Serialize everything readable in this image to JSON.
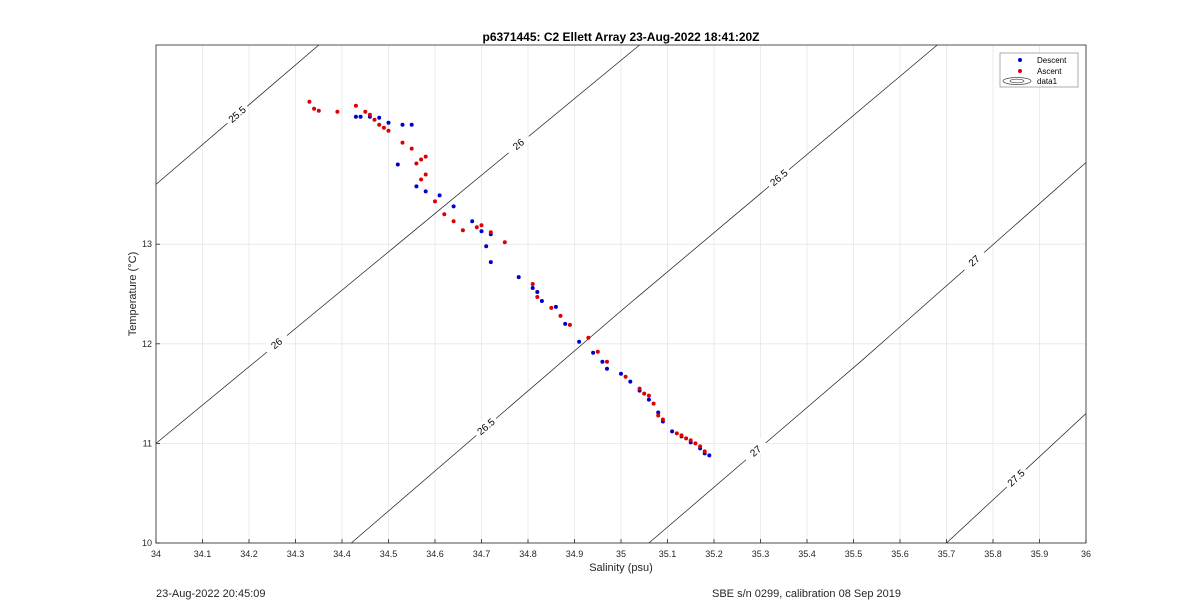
{
  "chart_data": {
    "type": "scatter",
    "title": "p6371445: C2 Ellett Array 23-Aug-2022 18:41:20Z",
    "xlabel": "Salinity (psu)",
    "ylabel": "Temperature (°C)",
    "xlim": [
      34,
      36
    ],
    "ylim": [
      10,
      15
    ],
    "xticks": [
      "34",
      "34.1",
      "34.2",
      "34.3",
      "34.4",
      "34.5",
      "34.6",
      "34.7",
      "34.8",
      "34.9",
      "35",
      "35.1",
      "35.2",
      "35.3",
      "35.4",
      "35.5",
      "35.6",
      "35.7",
      "35.8",
      "35.9",
      "36"
    ],
    "yticks": [
      "10",
      "11",
      "12",
      "13"
    ],
    "grid": true,
    "legend_position": "top-right",
    "legend": [
      "Descent",
      "Ascent",
      "data1"
    ],
    "series": [
      {
        "name": "Descent",
        "color": "#0000cc",
        "points": [
          [
            34.43,
            14.28
          ],
          [
            34.44,
            14.28
          ],
          [
            34.46,
            14.28
          ],
          [
            34.48,
            14.27
          ],
          [
            34.5,
            14.22
          ],
          [
            34.53,
            14.2
          ],
          [
            34.55,
            14.2
          ],
          [
            34.52,
            13.8
          ],
          [
            34.56,
            13.58
          ],
          [
            34.58,
            13.53
          ],
          [
            34.61,
            13.49
          ],
          [
            34.64,
            13.38
          ],
          [
            34.68,
            13.23
          ],
          [
            34.7,
            13.13
          ],
          [
            34.72,
            13.1
          ],
          [
            34.71,
            12.98
          ],
          [
            34.72,
            12.82
          ],
          [
            34.78,
            12.67
          ],
          [
            34.81,
            12.56
          ],
          [
            34.82,
            12.52
          ],
          [
            34.83,
            12.43
          ],
          [
            34.86,
            12.37
          ],
          [
            34.88,
            12.2
          ],
          [
            34.91,
            12.02
          ],
          [
            34.94,
            11.91
          ],
          [
            34.96,
            11.82
          ],
          [
            34.97,
            11.75
          ],
          [
            35.0,
            11.7
          ],
          [
            35.02,
            11.62
          ],
          [
            35.04,
            11.53
          ],
          [
            35.06,
            11.44
          ],
          [
            35.08,
            11.31
          ],
          [
            35.09,
            11.22
          ],
          [
            35.11,
            11.12
          ],
          [
            35.13,
            11.07
          ],
          [
            35.15,
            11.01
          ],
          [
            35.17,
            10.95
          ],
          [
            35.18,
            10.9
          ],
          [
            35.19,
            10.88
          ]
        ]
      },
      {
        "name": "Ascent",
        "color": "#dd0000",
        "points": [
          [
            34.33,
            14.43
          ],
          [
            34.34,
            14.36
          ],
          [
            34.35,
            14.34
          ],
          [
            34.39,
            14.33
          ],
          [
            34.43,
            14.39
          ],
          [
            34.45,
            14.33
          ],
          [
            34.46,
            14.3
          ],
          [
            34.47,
            14.25
          ],
          [
            34.48,
            14.2
          ],
          [
            34.49,
            14.17
          ],
          [
            34.5,
            14.14
          ],
          [
            34.53,
            14.02
          ],
          [
            34.55,
            13.96
          ],
          [
            34.56,
            13.81
          ],
          [
            34.57,
            13.85
          ],
          [
            34.58,
            13.88
          ],
          [
            34.58,
            13.7
          ],
          [
            34.57,
            13.65
          ],
          [
            34.6,
            13.43
          ],
          [
            34.62,
            13.3
          ],
          [
            34.64,
            13.23
          ],
          [
            34.66,
            13.14
          ],
          [
            34.69,
            13.17
          ],
          [
            34.7,
            13.19
          ],
          [
            34.72,
            13.12
          ],
          [
            34.75,
            13.02
          ],
          [
            34.81,
            12.6
          ],
          [
            34.82,
            12.47
          ],
          [
            34.85,
            12.36
          ],
          [
            34.87,
            12.28
          ],
          [
            34.89,
            12.19
          ],
          [
            34.93,
            12.06
          ],
          [
            34.95,
            11.92
          ],
          [
            34.97,
            11.82
          ],
          [
            35.01,
            11.67
          ],
          [
            35.04,
            11.55
          ],
          [
            35.05,
            11.5
          ],
          [
            35.06,
            11.48
          ],
          [
            35.07,
            11.4
          ],
          [
            35.08,
            11.28
          ],
          [
            35.09,
            11.24
          ],
          [
            35.12,
            11.1
          ],
          [
            35.13,
            11.08
          ],
          [
            35.14,
            11.05
          ],
          [
            35.15,
            11.03
          ],
          [
            35.16,
            11.0
          ],
          [
            35.17,
            10.97
          ],
          [
            35.18,
            10.92
          ]
        ]
      }
    ],
    "isopycnals": [
      {
        "label": "25.5",
        "x0": 34,
        "y0": 13.6,
        "x1": 34.35,
        "y1": 15
      },
      {
        "label": "26",
        "x0": 34,
        "y0": 11.0,
        "x1": 34.52,
        "y1": 13.0,
        "x2": 35.04,
        "y2": 15
      },
      {
        "label": "26.5",
        "x0": 34.42,
        "y0": 10.0,
        "x1": 35.0,
        "y1": 12.33,
        "x2": 35.68,
        "y2": 15
      },
      {
        "label": "27",
        "x0": 35.06,
        "y0": 10.0,
        "x1": 35.52,
        "y1": 11.84,
        "x2": 36,
        "y2": 13.82
      },
      {
        "label": "27.5",
        "x0": 35.7,
        "y0": 10.0,
        "x1": 36,
        "y1": 11.3
      }
    ]
  },
  "footer": {
    "left": "23-Aug-2022 20:45:09",
    "right": "SBE s/n 0299, calibration 08 Sep 2019"
  }
}
